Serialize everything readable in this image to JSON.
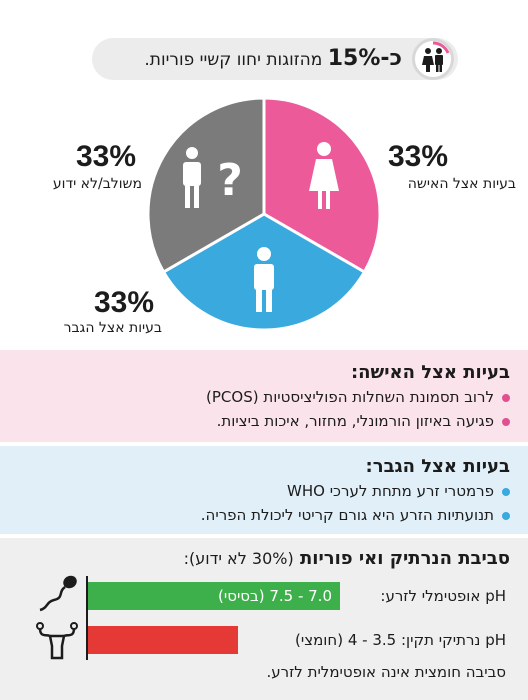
{
  "banner": {
    "prefix": "כ-",
    "percent": "15%",
    "text": " מהזוגות יחוו קשיי פוריות.",
    "icon": "couple-icon"
  },
  "pie": {
    "slices": [
      {
        "key": "female",
        "value": 33,
        "color": "#ec5a9a",
        "icon": "female-figure-icon"
      },
      {
        "key": "male",
        "value": 33,
        "color": "#39a9de",
        "icon": "male-figure-icon"
      },
      {
        "key": "unknown",
        "value": 33,
        "color": "#7b7b7b",
        "icon": "unknown-figure-icon"
      }
    ]
  },
  "labels": {
    "female": {
      "pct": "33%",
      "text": "בעיות אצל האישה"
    },
    "male": {
      "pct": "33%",
      "text": "בעיות אצל הגבר"
    },
    "unknown": {
      "pct": "33%",
      "text": "משולב/לא ידוע"
    },
    "question_mark": "?"
  },
  "woman_section": {
    "title": "בעיות אצל האישה:",
    "bullet_color": "#e24f8f",
    "items": [
      "לרוב תסמונת השחלות הפוליציסטיות (PCOS)",
      "פגיעה באיזון הורמונלי, מחזור, איכות ביציות."
    ]
  },
  "man_section": {
    "title": "בעיות אצל הגבר:",
    "bullet_color": "#39a9de",
    "items": [
      "פרמטרי זרע מתחת לערכי WHO",
      "תנועתיות הזרע היא גורם קריטי ליכולת הפריה."
    ]
  },
  "vagina_section": {
    "title": "סביבת הנרתיק ואי פוריות",
    "title_note": "(30% לא ידוע):",
    "bars": [
      {
        "label": "pH אופטימלי לזרע:",
        "value_text": "7.0 - 7.5 (בסיסי)",
        "color": "#3db04b",
        "icon": "sperm-icon"
      },
      {
        "label": "pH נרתיקי תקין:",
        "value_text": "3.5 - 4 (חומצי)",
        "color": "#e53935",
        "icon": "uterus-icon"
      }
    ],
    "footer": "סביבה חומצית אינה אופטימלית לזרע."
  }
}
